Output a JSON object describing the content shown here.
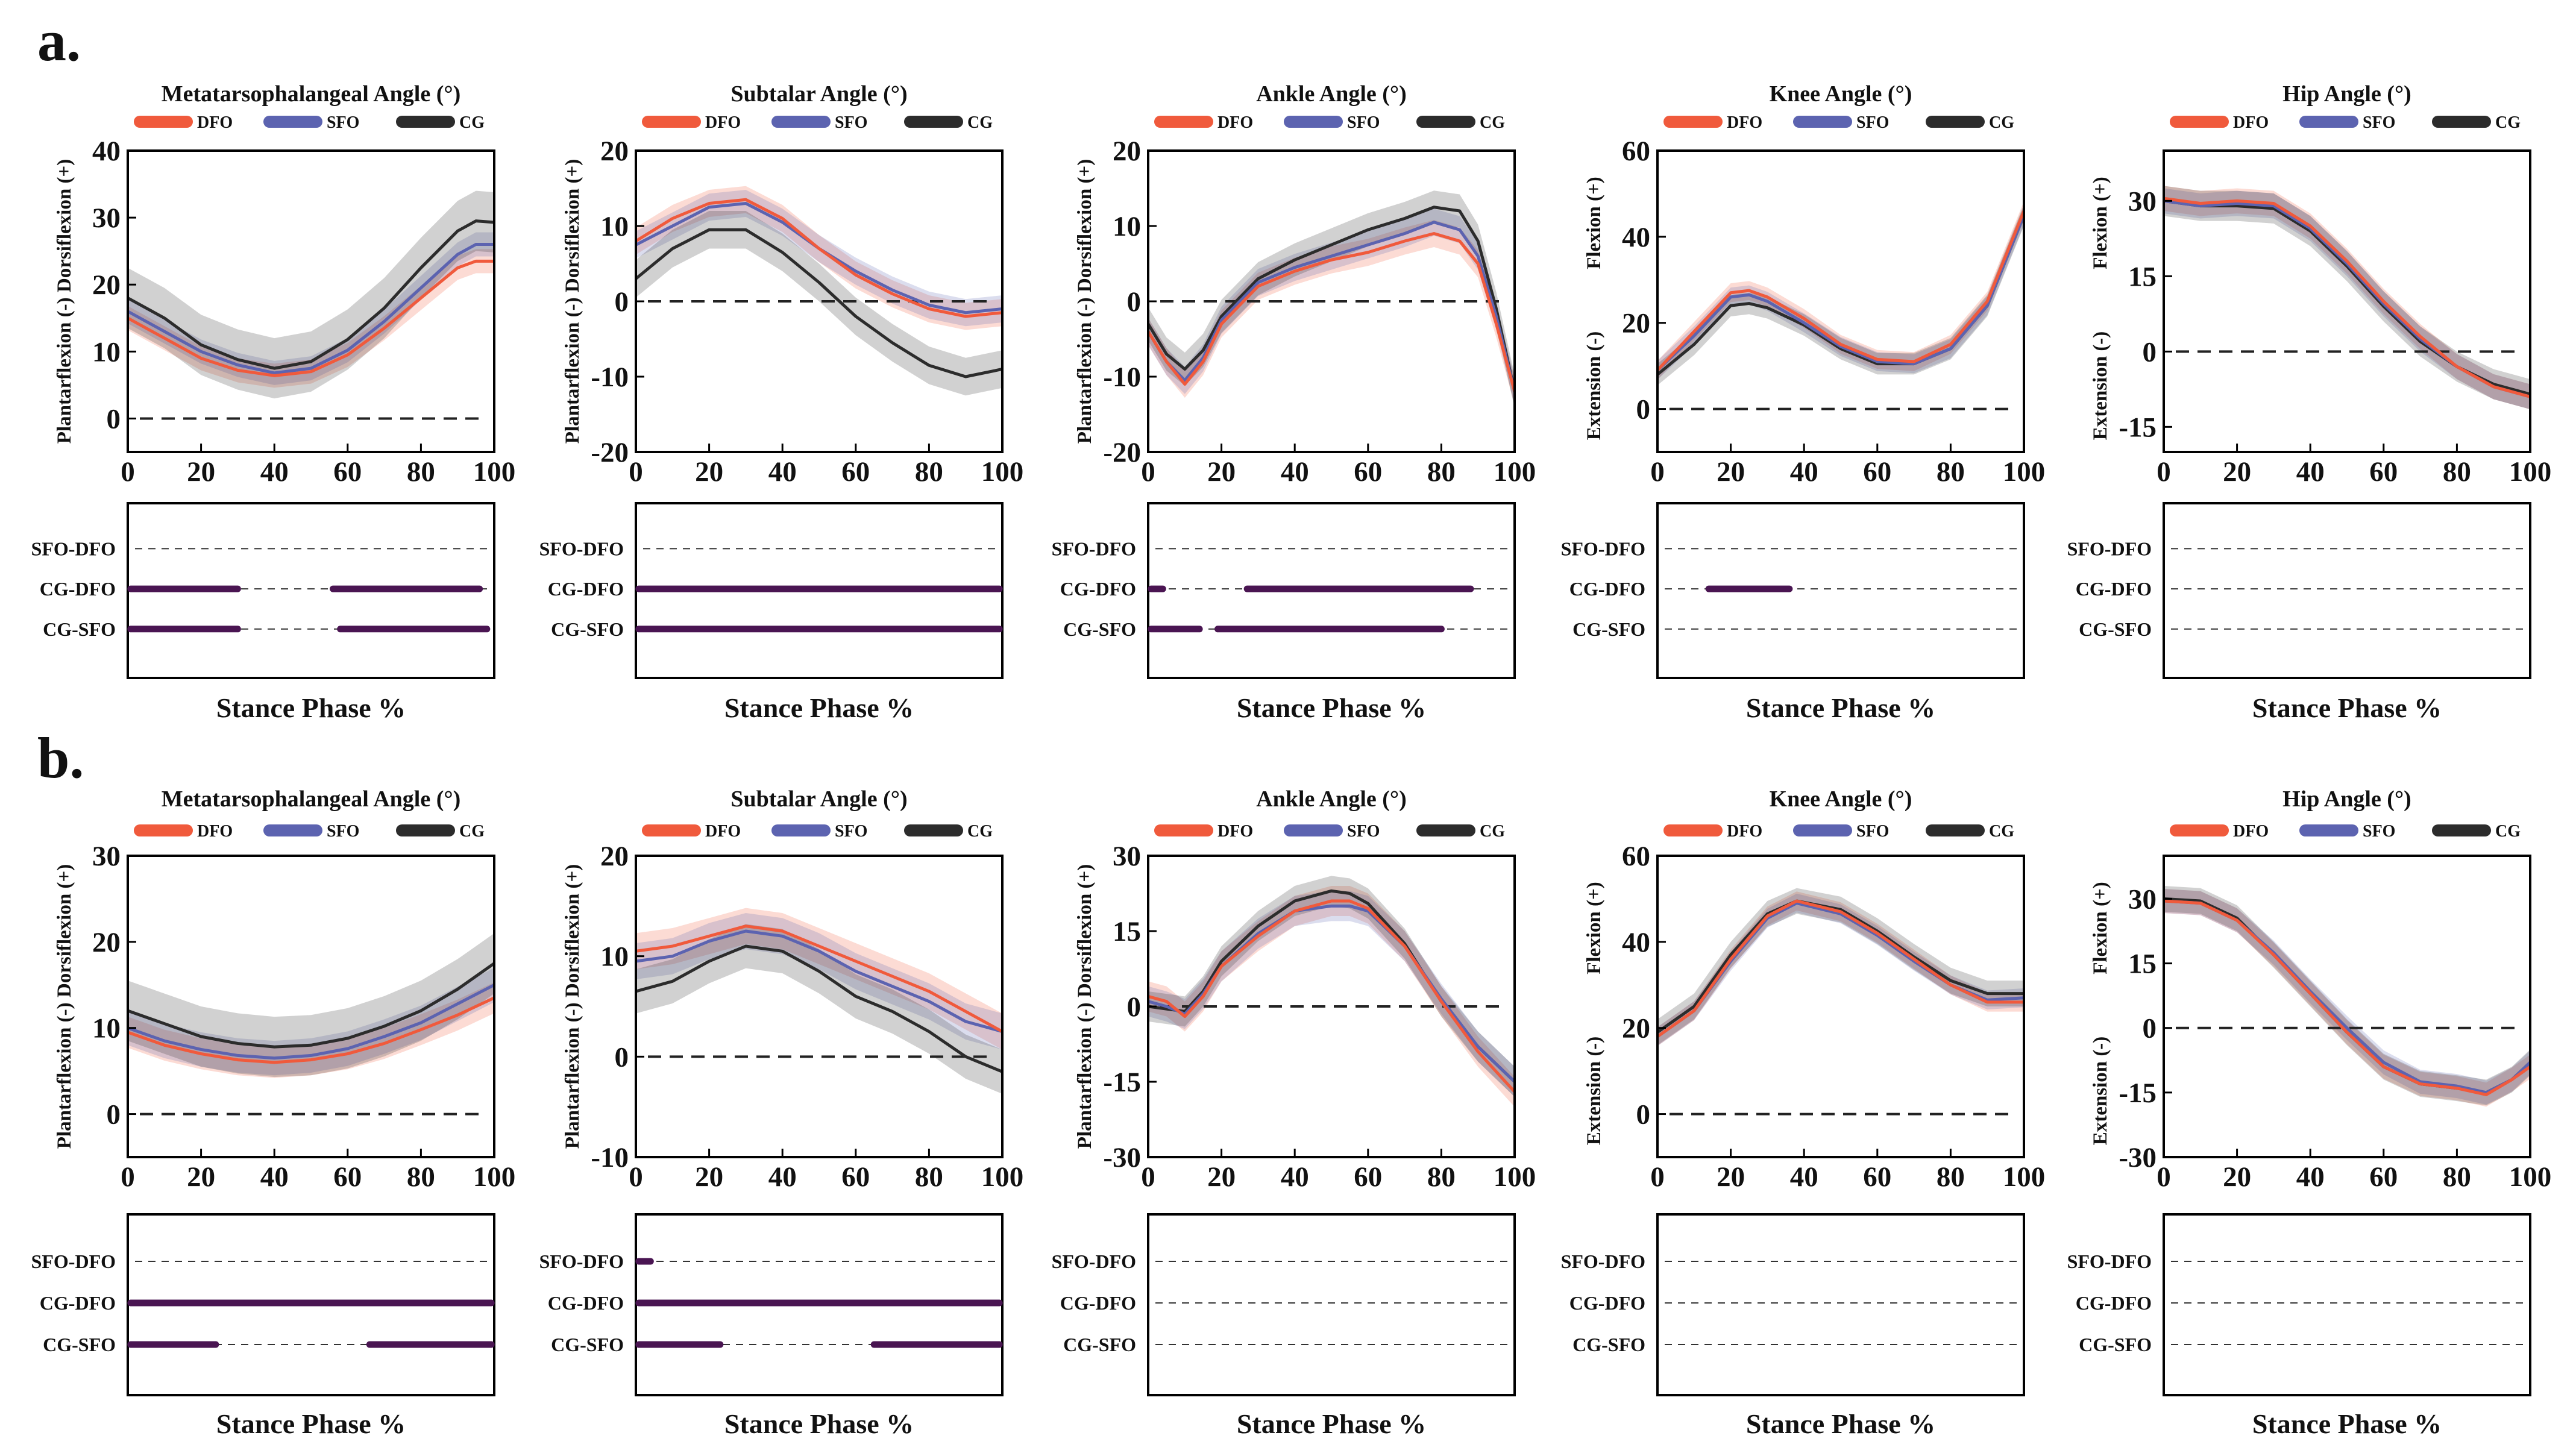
{
  "figure": {
    "row_labels": [
      "a.",
      "b."
    ],
    "legend": [
      "DFO",
      "SFO",
      "CG"
    ],
    "colors": {
      "DFO": "#f05a3c",
      "SFO": "#5c63b0",
      "CG": "#2c2c2c",
      "spm": "#4a1552"
    },
    "x_axis_label": "Stance Phase %",
    "spm_labels": [
      "SFO-DFO",
      "CG-DFO",
      "CG-SFO"
    ]
  },
  "chart_data": [
    {
      "type": "line",
      "row": "a",
      "title": "Metatarsophalangeal  Angle (°)",
      "y_label_top": "Plantarflexion (-)  Dorsiflexion (+)",
      "y_label_bottom": "",
      "ylim": [
        -5,
        40
      ],
      "yticks": [
        0,
        10,
        20,
        30,
        40
      ],
      "xlim": [
        0,
        100
      ],
      "xticks": [
        0,
        20,
        40,
        60,
        80,
        100
      ],
      "zero_line": true,
      "x": [
        0,
        10,
        20,
        30,
        40,
        50,
        60,
        70,
        80,
        90,
        95,
        100
      ],
      "series": [
        {
          "name": "DFO",
          "values": [
            15,
            12,
            9,
            7.2,
            6.4,
            7,
            9.5,
            13.5,
            18,
            22.5,
            23.5,
            23.5
          ],
          "band": 1.8
        },
        {
          "name": "SFO",
          "values": [
            16,
            13,
            10,
            8,
            6.8,
            7.5,
            10.2,
            14.5,
            19.5,
            24.5,
            26,
            26
          ],
          "band": 1.8
        },
        {
          "name": "CG",
          "values": [
            18,
            15,
            11,
            8.8,
            7.5,
            8.5,
            11.8,
            16.5,
            22.5,
            28,
            29.5,
            29.3
          ],
          "band": 4.5
        }
      ],
      "spm": [
        [],
        [
          [
            0,
            30
          ],
          [
            56,
            96
          ]
        ],
        [
          [
            0,
            30
          ],
          [
            58,
            98
          ]
        ]
      ]
    },
    {
      "type": "line",
      "row": "a",
      "title": "Subtalar Angle (°)",
      "y_label_top": "Plantarflexion (-)  Dorsiflexion (+)",
      "y_label_bottom": "",
      "ylim": [
        -20,
        20
      ],
      "yticks": [
        -20,
        -10,
        0,
        10,
        20
      ],
      "xlim": [
        0,
        100
      ],
      "xticks": [
        0,
        20,
        40,
        60,
        80,
        100
      ],
      "zero_line": true,
      "x": [
        0,
        10,
        20,
        30,
        40,
        50,
        60,
        70,
        80,
        90,
        100
      ],
      "series": [
        {
          "name": "DFO",
          "values": [
            8,
            11,
            13,
            13.5,
            11,
            7,
            3.5,
            1,
            -1,
            -2,
            -1.5
          ],
          "band": 1.8
        },
        {
          "name": "SFO",
          "values": [
            7.5,
            10,
            12.5,
            13,
            10.5,
            7,
            4,
            1.5,
            -0.5,
            -1.5,
            -1
          ],
          "band": 1.8
        },
        {
          "name": "CG",
          "values": [
            3,
            7,
            9.5,
            9.5,
            6.5,
            2.5,
            -2,
            -5.5,
            -8.5,
            -10,
            -9
          ],
          "band": 2.5
        }
      ],
      "spm": [
        [],
        [
          [
            0,
            100
          ]
        ],
        [
          [
            0,
            100
          ]
        ]
      ]
    },
    {
      "type": "line",
      "row": "a",
      "title": "Ankle Angle (°)",
      "y_label_top": "Plantarflexion (-)  Dorsiflexion (+)",
      "y_label_bottom": "",
      "ylim": [
        -20,
        20
      ],
      "yticks": [
        -20,
        -10,
        0,
        10,
        20
      ],
      "xlim": [
        0,
        100
      ],
      "xticks": [
        0,
        20,
        40,
        60,
        80,
        100
      ],
      "zero_line": true,
      "x": [
        0,
        5,
        10,
        15,
        20,
        30,
        40,
        50,
        60,
        70,
        78,
        85,
        90,
        95,
        100
      ],
      "series": [
        {
          "name": "DFO",
          "values": [
            -4,
            -8,
            -11,
            -8,
            -3,
            2,
            4,
            5.5,
            6.5,
            8,
            9,
            8,
            5,
            -3,
            -12
          ],
          "band": 1.8
        },
        {
          "name": "SFO",
          "values": [
            -4,
            -8,
            -10.5,
            -7.5,
            -2.5,
            2.5,
            4.5,
            6,
            7.5,
            9,
            10.5,
            9.5,
            6,
            -2,
            -12
          ],
          "band": 1.8
        },
        {
          "name": "CG",
          "values": [
            -3,
            -7,
            -9,
            -6.5,
            -2,
            3,
            5.5,
            7.5,
            9.5,
            11,
            12.5,
            12,
            8,
            -1,
            -12
          ],
          "band": 2.2
        }
      ],
      "spm": [
        [],
        [
          [
            0,
            4
          ],
          [
            27,
            88
          ]
        ],
        [
          [
            0,
            14
          ],
          [
            19,
            80
          ]
        ]
      ]
    },
    {
      "type": "line",
      "row": "a",
      "title": "Knee Angle (°)",
      "y_label_top": "Flexion (+)",
      "y_label_bottom": "Extension (-)",
      "ylim": [
        -10,
        60
      ],
      "yticks": [
        0,
        20,
        40,
        60
      ],
      "xlim": [
        0,
        100
      ],
      "xticks": [
        0,
        20,
        40,
        60,
        80,
        100
      ],
      "zero_line": true,
      "x": [
        0,
        10,
        20,
        25,
        30,
        40,
        50,
        60,
        70,
        80,
        90,
        100
      ],
      "series": [
        {
          "name": "DFO",
          "values": [
            9,
            18,
            27,
            27.5,
            26,
            21,
            15,
            11.5,
            11,
            15,
            25,
            46
          ],
          "band": 2.2
        },
        {
          "name": "SFO",
          "values": [
            9,
            17,
            26,
            26.5,
            25,
            20,
            14.5,
            11,
            10.5,
            14,
            24,
            45
          ],
          "band": 2.2
        },
        {
          "name": "CG",
          "values": [
            8,
            15,
            24,
            24.5,
            23.5,
            19.5,
            14,
            10.5,
            10.5,
            14,
            24,
            45
          ],
          "band": 2.5
        }
      ],
      "spm": [
        [],
        [
          [
            14,
            36
          ]
        ],
        []
      ]
    },
    {
      "type": "line",
      "row": "a",
      "title": "Hip Angle (°)",
      "y_label_top": "Flexion (+)",
      "y_label_bottom": "Extension (-)",
      "ylim": [
        -20,
        40
      ],
      "yticks": [
        -15,
        0,
        15,
        30
      ],
      "xlim": [
        0,
        100
      ],
      "xticks": [
        0,
        20,
        40,
        60,
        80,
        100
      ],
      "zero_line": true,
      "x": [
        0,
        10,
        20,
        30,
        40,
        50,
        60,
        70,
        80,
        90,
        100
      ],
      "series": [
        {
          "name": "DFO",
          "values": [
            30.5,
            29.5,
            30,
            29.5,
            25,
            18,
            10,
            3,
            -3,
            -7,
            -9
          ],
          "band": 2.5
        },
        {
          "name": "SFO",
          "values": [
            30,
            29,
            29.5,
            29,
            24.5,
            17.5,
            9.5,
            2.5,
            -3,
            -7,
            -9
          ],
          "band": 2.5
        },
        {
          "name": "CG",
          "values": [
            30,
            29,
            29,
            28.5,
            24,
            17,
            9,
            2,
            -3,
            -6.5,
            -8.5
          ],
          "band": 3
        }
      ],
      "spm": [
        [],
        [],
        []
      ]
    },
    {
      "type": "line",
      "row": "b",
      "title": "Metatarsophalangeal  Angle (°)",
      "y_label_top": "Plantarflexion (-)  Dorsiflexion (+)",
      "y_label_bottom": "",
      "ylim": [
        -5,
        30
      ],
      "yticks": [
        0,
        10,
        20,
        30
      ],
      "xlim": [
        0,
        100
      ],
      "xticks": [
        0,
        20,
        40,
        60,
        80,
        100
      ],
      "zero_line": true,
      "x": [
        0,
        10,
        20,
        30,
        40,
        50,
        60,
        70,
        80,
        90,
        100
      ],
      "series": [
        {
          "name": "DFO",
          "values": [
            9.5,
            8,
            7,
            6.3,
            6,
            6.3,
            7,
            8.2,
            9.8,
            11.5,
            13.5
          ],
          "band": 1.8
        },
        {
          "name": "SFO",
          "values": [
            10,
            8.5,
            7.5,
            6.8,
            6.5,
            6.8,
            7.6,
            9,
            10.6,
            12.8,
            15
          ],
          "band": 2
        },
        {
          "name": "CG",
          "values": [
            12,
            10.5,
            9,
            8.2,
            7.8,
            8,
            8.8,
            10.2,
            12,
            14.5,
            17.5
          ],
          "band": 3.5
        }
      ],
      "spm": [
        [],
        [
          [
            0,
            100
          ]
        ],
        [
          [
            0,
            24
          ],
          [
            66,
            100
          ]
        ]
      ]
    },
    {
      "type": "line",
      "row": "b",
      "title": "Subtalar Angle (°)",
      "y_label_top": "Plantarflexion (-)  Dorsiflexion (+)",
      "y_label_bottom": "",
      "ylim": [
        -10,
        20
      ],
      "yticks": [
        -10,
        0,
        10,
        20
      ],
      "xlim": [
        0,
        100
      ],
      "xticks": [
        0,
        20,
        40,
        60,
        80,
        100
      ],
      "zero_line": true,
      "x": [
        0,
        10,
        20,
        30,
        40,
        50,
        60,
        70,
        80,
        90,
        100
      ],
      "series": [
        {
          "name": "DFO",
          "values": [
            10.5,
            11,
            12,
            13,
            12.5,
            11,
            9.5,
            8,
            6.5,
            4.5,
            2.5
          ],
          "band": 1.8
        },
        {
          "name": "SFO",
          "values": [
            9.5,
            10,
            11.5,
            12.5,
            12,
            10.5,
            8.5,
            7,
            5.5,
            3.5,
            2.5
          ],
          "band": 1.8
        },
        {
          "name": "CG",
          "values": [
            6.5,
            7.5,
            9.5,
            11,
            10.5,
            8.5,
            6,
            4.5,
            2.5,
            0,
            -1.5
          ],
          "band": 2.2
        }
      ],
      "spm": [
        [
          [
            0,
            4
          ]
        ],
        [
          [
            0,
            100
          ]
        ],
        [
          [
            0,
            23
          ],
          [
            65,
            100
          ]
        ]
      ]
    },
    {
      "type": "line",
      "row": "b",
      "title": "Ankle Angle (°)",
      "y_label_top": "Plantarflexion (-)  Dorsiflexion (+)",
      "y_label_bottom": "",
      "ylim": [
        -30,
        30
      ],
      "yticks": [
        -30,
        -15,
        0,
        15,
        30
      ],
      "xlim": [
        0,
        100
      ],
      "xticks": [
        0,
        20,
        40,
        60,
        80,
        100
      ],
      "zero_line": true,
      "x": [
        0,
        5,
        10,
        15,
        20,
        30,
        40,
        50,
        55,
        60,
        70,
        80,
        90,
        100
      ],
      "series": [
        {
          "name": "DFO",
          "values": [
            2,
            1,
            -2,
            2,
            8,
            14,
            19,
            21,
            21,
            19.5,
            12,
            1,
            -9,
            -17
          ],
          "band": 3
        },
        {
          "name": "SFO",
          "values": [
            1,
            0,
            -1.5,
            2.5,
            8,
            14.5,
            19,
            20,
            20,
            19,
            12,
            1.5,
            -8,
            -15
          ],
          "band": 3
        },
        {
          "name": "CG",
          "values": [
            0,
            -0.5,
            -1,
            3,
            9,
            16,
            21,
            23,
            22.5,
            20.5,
            12.5,
            1,
            -8,
            -15
          ],
          "band": 3
        }
      ],
      "spm": [
        [],
        [],
        []
      ]
    },
    {
      "type": "line",
      "row": "b",
      "title": "Knee Angle (°)",
      "y_label_top": "Flexion (+)",
      "y_label_bottom": "Extension (-)",
      "ylim": [
        -10,
        60
      ],
      "yticks": [
        0,
        20,
        40,
        60
      ],
      "xlim": [
        0,
        100
      ],
      "xticks": [
        0,
        20,
        40,
        60,
        80,
        100
      ],
      "zero_line": true,
      "x": [
        0,
        10,
        20,
        30,
        38,
        50,
        60,
        70,
        80,
        90,
        100
      ],
      "series": [
        {
          "name": "DFO",
          "values": [
            18,
            24,
            36,
            46,
            49.5,
            47,
            42,
            36,
            30,
            26,
            26
          ],
          "band": 2.2
        },
        {
          "name": "SFO",
          "values": [
            18,
            24,
            35.5,
            45.5,
            49,
            46.5,
            41.5,
            35.5,
            30,
            26.5,
            27
          ],
          "band": 2.2
        },
        {
          "name": "CG",
          "values": [
            19,
            25,
            37,
            46.5,
            49.5,
            47.5,
            42.5,
            36.5,
            31,
            28,
            28
          ],
          "band": 3
        }
      ],
      "spm": [
        [],
        [],
        []
      ]
    },
    {
      "type": "line",
      "row": "b",
      "title": "Hip Angle (°)",
      "y_label_top": "Flexion (+)",
      "y_label_bottom": "Extension (-)",
      "ylim": [
        -30,
        40
      ],
      "yticks": [
        -30,
        -15,
        0,
        15,
        30
      ],
      "xlim": [
        0,
        100
      ],
      "xticks": [
        0,
        20,
        40,
        60,
        80,
        100
      ],
      "zero_line": true,
      "x": [
        0,
        10,
        20,
        30,
        40,
        50,
        60,
        70,
        80,
        88,
        95,
        100
      ],
      "series": [
        {
          "name": "DFO",
          "values": [
            29.5,
            29,
            25,
            17,
            8,
            -1,
            -9,
            -13,
            -14,
            -15.5,
            -12,
            -9
          ],
          "band": 2.8
        },
        {
          "name": "SFO",
          "values": [
            29.5,
            29,
            25,
            17.5,
            8.5,
            0,
            -8,
            -12.5,
            -13.5,
            -15,
            -12,
            -8
          ],
          "band": 2.8
        },
        {
          "name": "CG",
          "values": [
            30,
            29.5,
            25.5,
            17,
            8,
            -1,
            -9,
            -13,
            -14,
            -15,
            -12,
            -8
          ],
          "band": 3
        }
      ],
      "spm": [
        [],
        [],
        []
      ]
    }
  ]
}
